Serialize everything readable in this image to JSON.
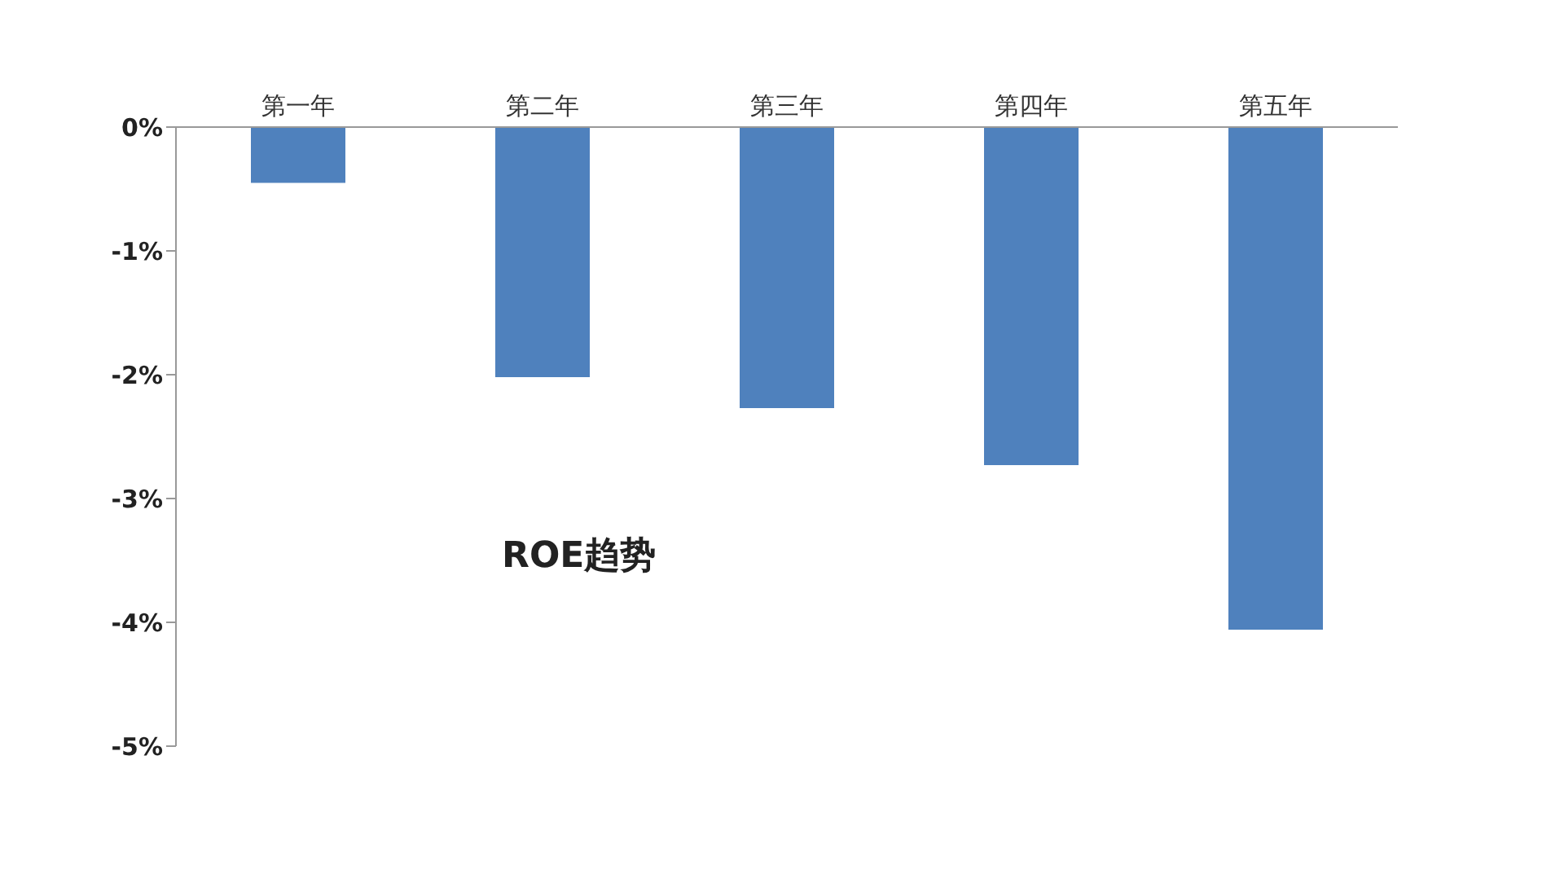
{
  "chart_data": {
    "type": "bar",
    "title": "ROE趋势",
    "categories": [
      "第一年",
      "第二年",
      "第三年",
      "第四年",
      "第五年"
    ],
    "values": [
      -0.45,
      -2.02,
      -2.27,
      -2.73,
      -4.06
    ],
    "color": "#4f81bd",
    "ylim": [
      -5,
      0
    ],
    "yticks": [
      {
        "value": 0,
        "label": "0%"
      },
      {
        "value": -1,
        "label": "-1%"
      },
      {
        "value": -2,
        "label": "-2%"
      },
      {
        "value": -3,
        "label": "-3%"
      },
      {
        "value": -4,
        "label": "-4%"
      },
      {
        "value": -5,
        "label": "-5%"
      }
    ],
    "grid": false
  }
}
